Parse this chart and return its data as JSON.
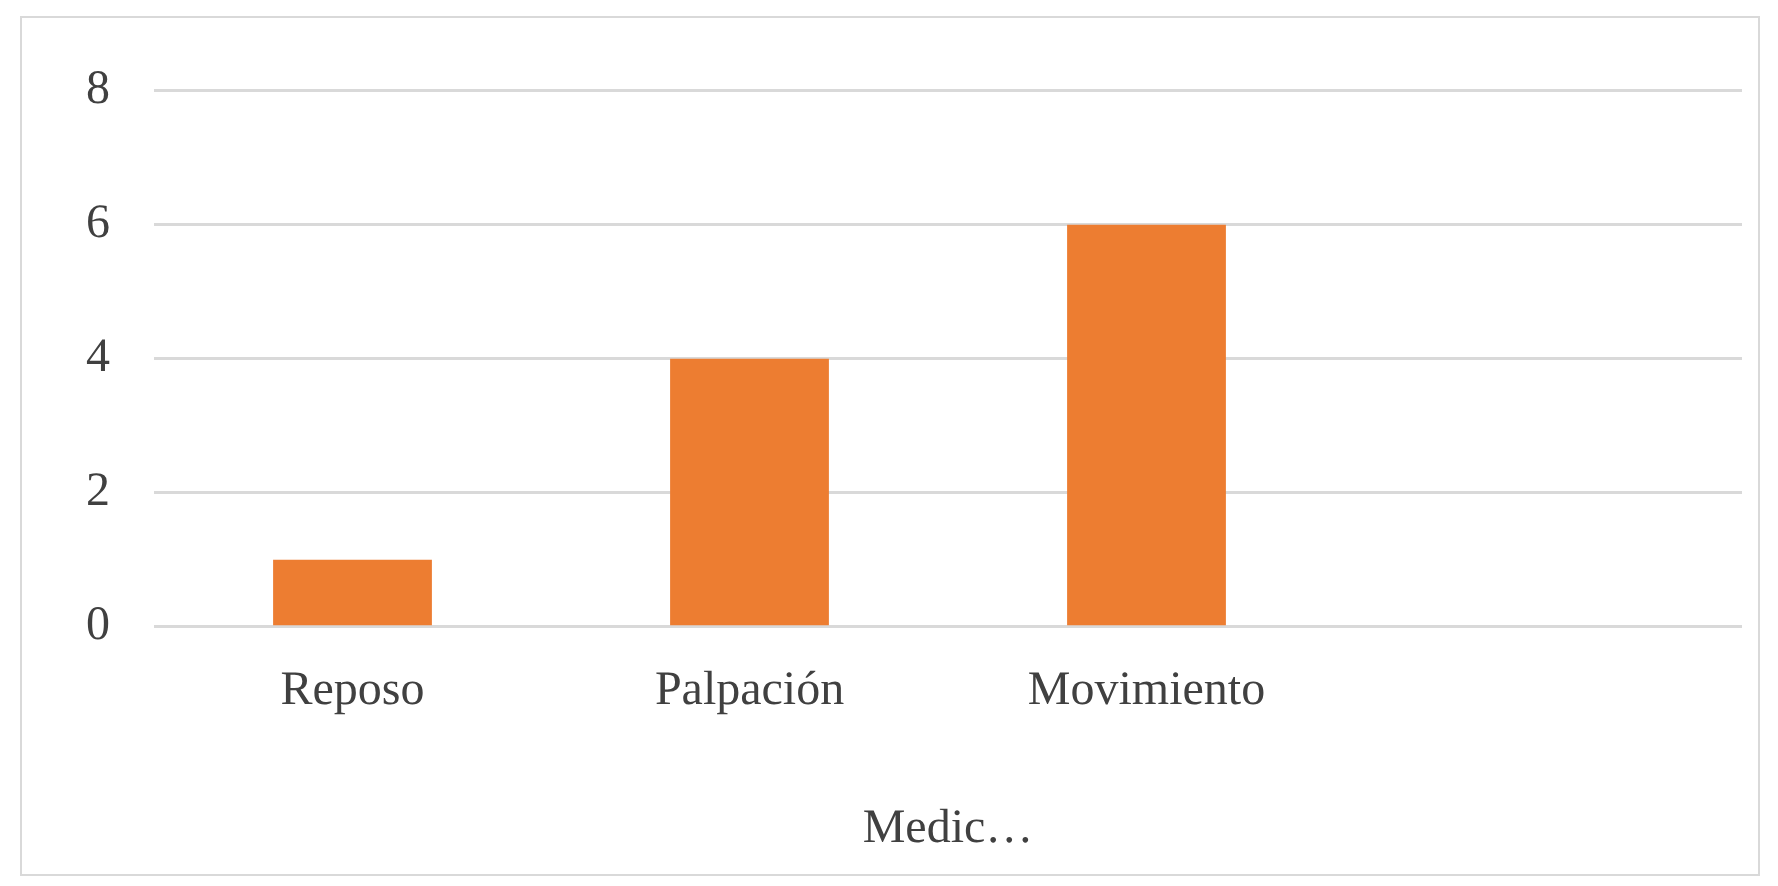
{
  "chart_data": {
    "type": "bar",
    "xlabel": "Medic…",
    "categories": [
      "Reposo",
      "Palpación",
      "Movimiento",
      null
    ],
    "values": [
      1,
      4,
      6,
      null
    ],
    "color": "#ed7d31",
    "ylim": [
      0,
      8
    ],
    "yticks": [
      0,
      2,
      4,
      6,
      8
    ],
    "grid": "y",
    "legend": false
  }
}
